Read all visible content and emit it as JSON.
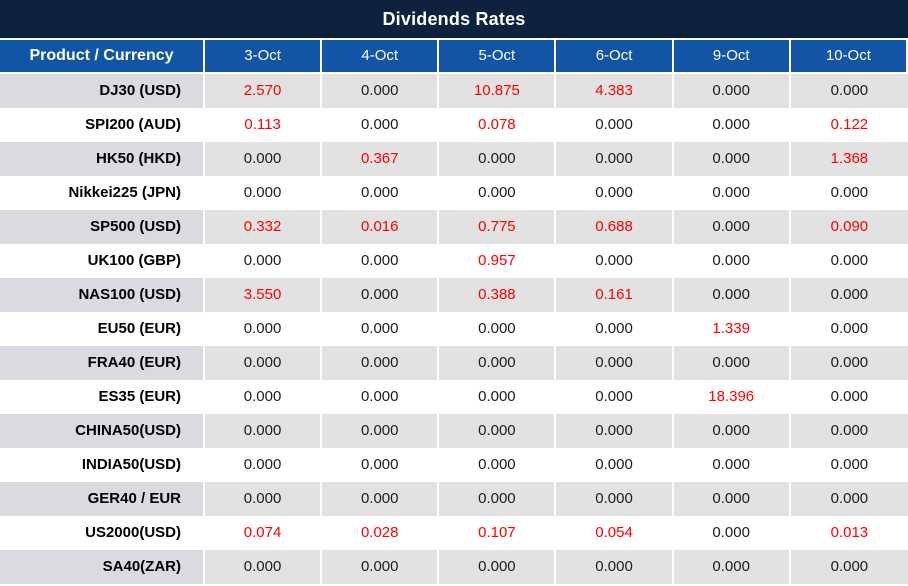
{
  "title": "Dividends Rates",
  "colors": {
    "title_bg": "#0e2240",
    "header_bg": "#1155a4",
    "header_text": "#ffffff",
    "highlight_red": "#ff0000",
    "value_black": "#1c1c1c",
    "row_alt_bg": "#e2e2e2",
    "product_alt_bg": "#d9dbe1",
    "row_bg": "#ffffff"
  },
  "chart_data": {
    "type": "table",
    "title": "Dividends Rates",
    "columns": [
      "Product / Currency",
      "3-Oct",
      "4-Oct",
      "5-Oct",
      "6-Oct",
      "9-Oct",
      "10-Oct"
    ],
    "rows": [
      {
        "product": "DJ30 (USD)",
        "values": [
          "2.570",
          "0.000",
          "10.875",
          "4.383",
          "0.000",
          "0.000"
        ],
        "red": [
          true,
          false,
          true,
          true,
          false,
          false
        ]
      },
      {
        "product": "SPI200 (AUD)",
        "values": [
          "0.113",
          "0.000",
          "0.078",
          "0.000",
          "0.000",
          "0.122"
        ],
        "red": [
          true,
          false,
          true,
          false,
          false,
          true
        ]
      },
      {
        "product": "HK50 (HKD)",
        "values": [
          "0.000",
          "0.367",
          "0.000",
          "0.000",
          "0.000",
          "1.368"
        ],
        "red": [
          false,
          true,
          false,
          false,
          false,
          true
        ]
      },
      {
        "product": "Nikkei225 (JPN)",
        "values": [
          "0.000",
          "0.000",
          "0.000",
          "0.000",
          "0.000",
          "0.000"
        ],
        "red": [
          false,
          false,
          false,
          false,
          false,
          false
        ]
      },
      {
        "product": "SP500 (USD)",
        "values": [
          "0.332",
          "0.016",
          "0.775",
          "0.688",
          "0.000",
          "0.090"
        ],
        "red": [
          true,
          true,
          true,
          true,
          false,
          true
        ]
      },
      {
        "product": "UK100 (GBP)",
        "values": [
          "0.000",
          "0.000",
          "0.957",
          "0.000",
          "0.000",
          "0.000"
        ],
        "red": [
          false,
          false,
          true,
          false,
          false,
          false
        ]
      },
      {
        "product": "NAS100 (USD)",
        "values": [
          "3.550",
          "0.000",
          "0.388",
          "0.161",
          "0.000",
          "0.000"
        ],
        "red": [
          true,
          false,
          true,
          true,
          false,
          false
        ]
      },
      {
        "product": "EU50 (EUR)",
        "values": [
          "0.000",
          "0.000",
          "0.000",
          "0.000",
          "1.339",
          "0.000"
        ],
        "red": [
          false,
          false,
          false,
          false,
          true,
          false
        ]
      },
      {
        "product": "FRA40 (EUR)",
        "values": [
          "0.000",
          "0.000",
          "0.000",
          "0.000",
          "0.000",
          "0.000"
        ],
        "red": [
          false,
          false,
          false,
          false,
          false,
          false
        ]
      },
      {
        "product": "ES35 (EUR)",
        "values": [
          "0.000",
          "0.000",
          "0.000",
          "0.000",
          "18.396",
          "0.000"
        ],
        "red": [
          false,
          false,
          false,
          false,
          true,
          false
        ]
      },
      {
        "product": "CHINA50(USD)",
        "values": [
          "0.000",
          "0.000",
          "0.000",
          "0.000",
          "0.000",
          "0.000"
        ],
        "red": [
          false,
          false,
          false,
          false,
          false,
          false
        ]
      },
      {
        "product": "INDIA50(USD)",
        "values": [
          "0.000",
          "0.000",
          "0.000",
          "0.000",
          "0.000",
          "0.000"
        ],
        "red": [
          false,
          false,
          false,
          false,
          false,
          false
        ]
      },
      {
        "product": "GER40 / EUR",
        "values": [
          "0.000",
          "0.000",
          "0.000",
          "0.000",
          "0.000",
          "0.000"
        ],
        "red": [
          false,
          false,
          false,
          false,
          false,
          false
        ]
      },
      {
        "product": "US2000(USD)",
        "values": [
          "0.074",
          "0.028",
          "0.107",
          "0.054",
          "0.000",
          "0.013"
        ],
        "red": [
          true,
          true,
          true,
          true,
          false,
          true
        ]
      },
      {
        "product": "SA40(ZAR)",
        "values": [
          "0.000",
          "0.000",
          "0.000",
          "0.000",
          "0.000",
          "0.000"
        ],
        "red": [
          false,
          false,
          false,
          false,
          false,
          false
        ]
      }
    ]
  }
}
